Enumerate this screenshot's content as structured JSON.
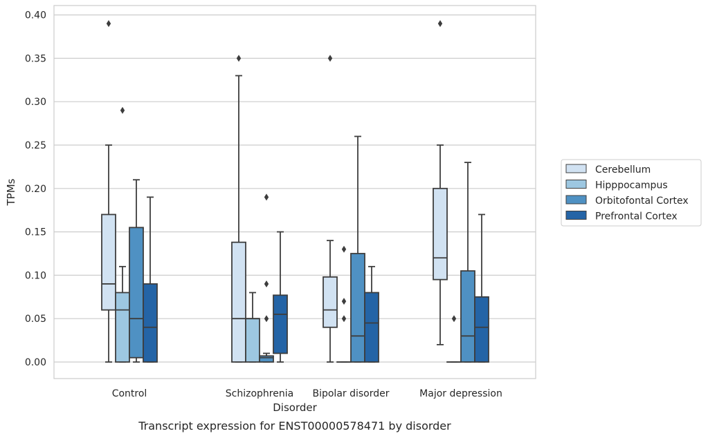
{
  "chart_data": {
    "type": "box",
    "xlabel": "Disorder",
    "ylabel": "TPMs",
    "caption": "Transcript expression for ENST00000578471 by disorder",
    "ylim": [
      -0.02,
      0.41
    ],
    "yticks": [
      "0.00",
      "0.05",
      "0.10",
      "0.15",
      "0.20",
      "0.25",
      "0.30",
      "0.35",
      "0.40"
    ],
    "categories": [
      "Control",
      "Schizophrenia",
      "Bipolar disorder",
      "Major depression"
    ],
    "grid": "horizontal",
    "legend_position": "right",
    "series": [
      {
        "name": "Cerebellum",
        "color": "#d1e2f2",
        "boxes": [
          {
            "q1": 0.06,
            "median": 0.09,
            "q3": 0.17,
            "low": 0.0,
            "high": 0.25,
            "outliers": [
              0.39
            ]
          },
          {
            "q1": 0.0,
            "median": 0.05,
            "q3": 0.138,
            "low": 0.0,
            "high": 0.33,
            "outliers": [
              0.35
            ]
          },
          {
            "q1": 0.04,
            "median": 0.06,
            "q3": 0.098,
            "low": 0.0,
            "high": 0.14,
            "outliers": [
              0.35
            ]
          },
          {
            "q1": 0.095,
            "median": 0.12,
            "q3": 0.2,
            "low": 0.02,
            "high": 0.25,
            "outliers": [
              0.39
            ]
          }
        ]
      },
      {
        "name": "Hipppocampus",
        "color": "#9dc7e1",
        "boxes": [
          {
            "q1": 0.0,
            "median": 0.06,
            "q3": 0.08,
            "low": 0.0,
            "high": 0.11,
            "outliers": [
              0.29
            ]
          },
          {
            "q1": 0.0,
            "median": 0.05,
            "q3": 0.05,
            "low": 0.0,
            "high": 0.08,
            "outliers": []
          },
          {
            "q1": 0.0,
            "median": 0.0,
            "q3": 0.0,
            "low": 0.0,
            "high": 0.0,
            "outliers": [
              0.13,
              0.07,
              0.05
            ]
          },
          {
            "q1": 0.0,
            "median": 0.0,
            "q3": 0.0,
            "low": 0.0,
            "high": 0.0,
            "outliers": [
              0.05
            ]
          }
        ]
      },
      {
        "name": "Orbitofontal Cortex",
        "color": "#4f91c3",
        "boxes": [
          {
            "q1": 0.005,
            "median": 0.05,
            "q3": 0.155,
            "low": 0.0,
            "high": 0.21,
            "outliers": []
          },
          {
            "q1": 0.0,
            "median": 0.005,
            "q3": 0.007,
            "low": 0.0,
            "high": 0.01,
            "outliers": [
              0.19,
              0.09,
              0.05
            ]
          },
          {
            "q1": 0.0,
            "median": 0.03,
            "q3": 0.125,
            "low": 0.0,
            "high": 0.26,
            "outliers": []
          },
          {
            "q1": 0.0,
            "median": 0.03,
            "q3": 0.105,
            "low": 0.0,
            "high": 0.23,
            "outliers": []
          }
        ]
      },
      {
        "name": "Prefrontal Cortex",
        "color": "#2464a6",
        "boxes": [
          {
            "q1": 0.0,
            "median": 0.04,
            "q3": 0.09,
            "low": 0.0,
            "high": 0.19,
            "outliers": []
          },
          {
            "q1": 0.01,
            "median": 0.055,
            "q3": 0.077,
            "low": 0.0,
            "high": 0.15,
            "outliers": []
          },
          {
            "q1": 0.0,
            "median": 0.045,
            "q3": 0.08,
            "low": 0.0,
            "high": 0.11,
            "outliers": []
          },
          {
            "q1": 0.0,
            "median": 0.04,
            "q3": 0.075,
            "low": 0.0,
            "high": 0.17,
            "outliers": []
          }
        ]
      }
    ]
  }
}
